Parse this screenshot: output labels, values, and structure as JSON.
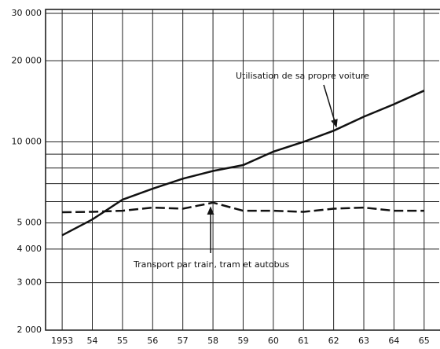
{
  "chart_data": {
    "type": "line",
    "log_y": true,
    "grid": true,
    "x": [
      1953,
      1954,
      1955,
      1956,
      1957,
      1958,
      1959,
      1960,
      1961,
      1962,
      1963,
      1964,
      1965
    ],
    "xlim": [
      1952.45,
      1965.5
    ],
    "xticks": [
      {
        "value": 1953,
        "label": "1953"
      },
      {
        "value": 1954,
        "label": "54"
      },
      {
        "value": 1955,
        "label": "55"
      },
      {
        "value": 1956,
        "label": "56"
      },
      {
        "value": 1957,
        "label": "57"
      },
      {
        "value": 1958,
        "label": "58"
      },
      {
        "value": 1959,
        "label": "59"
      },
      {
        "value": 1960,
        "label": "60"
      },
      {
        "value": 1961,
        "label": "61"
      },
      {
        "value": 1962,
        "label": "62"
      },
      {
        "value": 1963,
        "label": "63"
      },
      {
        "value": 1964,
        "label": "64"
      },
      {
        "value": 1965,
        "label": "65"
      }
    ],
    "ylim": [
      2000,
      30000
    ],
    "yticks": [
      {
        "value": 2000,
        "label": "2 000"
      },
      {
        "value": 3000,
        "label": "3 000"
      },
      {
        "value": 4000,
        "label": "4 000"
      },
      {
        "value": 5000,
        "label": "5 000"
      },
      {
        "value": 10000,
        "label": "10 000"
      },
      {
        "value": 20000,
        "label": "20 000"
      },
      {
        "value": 30000,
        "label": "30 000"
      }
    ],
    "yminor": [
      6000,
      7000,
      8000,
      9000
    ],
    "series": [
      {
        "name": "Utilisation de sa propre voiture",
        "color": "#111111",
        "dash": false,
        "values": [
          4500,
          5150,
          6100,
          6700,
          7300,
          7800,
          8200,
          9200,
          10000,
          11000,
          12400,
          13800,
          15500
        ]
      },
      {
        "name": "Transport par train, tram et autobus",
        "color": "#111111",
        "dash": true,
        "values": [
          5480,
          5500,
          5550,
          5700,
          5650,
          5950,
          5550,
          5550,
          5500,
          5650,
          5700,
          5550,
          5550
        ]
      }
    ]
  }
}
